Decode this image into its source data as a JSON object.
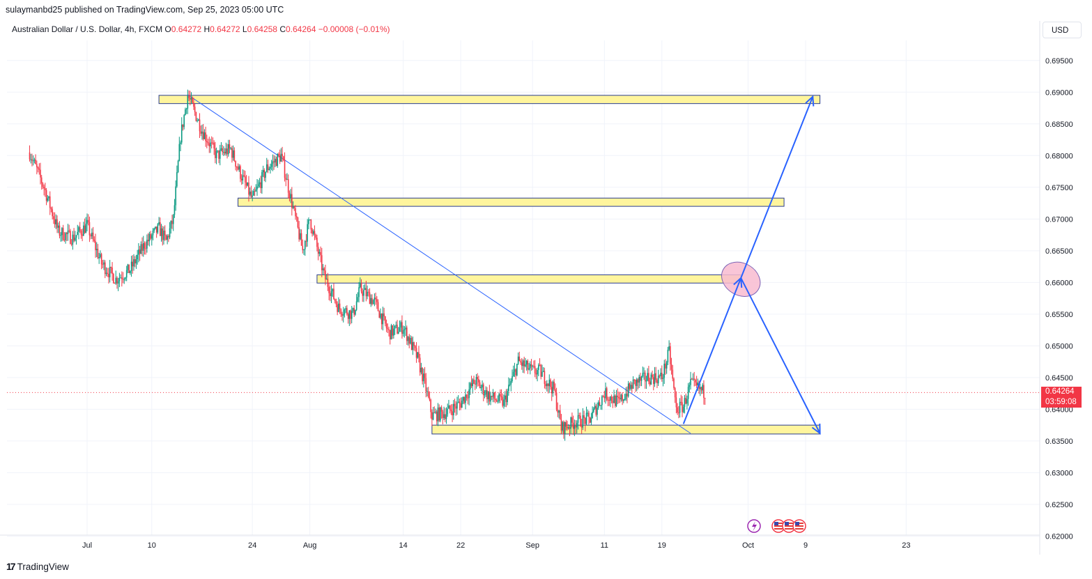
{
  "header": {
    "publisher": "sulaymanbd25 published on TradingView.com, Sep 25, 2023 05:00 UTC",
    "legend_title": "Australian Dollar / U.S. Dollar, 4h, FXCM",
    "o_label": "O",
    "o_value": "0.64272",
    "h_label": "H",
    "h_value": "0.64272",
    "l_label": "L",
    "l_value": "0.64258",
    "c_label": "C",
    "c_value": "0.64264",
    "change": "−0.00008 (−0.01%)",
    "currency_button": "USD"
  },
  "last_price": {
    "price": "0.64264",
    "countdown": "03:59:08"
  },
  "footer": {
    "brand": "TradingView"
  },
  "colors": {
    "up": "#089981",
    "down": "#f23645",
    "zone_fill": "#fff59d",
    "zone_border": "#2a3d8f",
    "arrow": "#2962ff",
    "trendline": "#2962ff",
    "ellipse": "#f8bbd0"
  },
  "chart_data": {
    "type": "candlestick",
    "symbol": "AUDUSD",
    "timeframe": "4h",
    "ylim": [
      0.6195,
      0.6975
    ],
    "y_ticks": [
      "0.69500",
      "0.69000",
      "0.68500",
      "0.68000",
      "0.67500",
      "0.67000",
      "0.66500",
      "0.66000",
      "0.65500",
      "0.65000",
      "0.64500",
      "0.64000",
      "0.63500",
      "0.63000",
      "0.62500",
      "0.62000"
    ],
    "x_ticks": [
      "Jul",
      "10",
      "24",
      "Aug",
      "14",
      "22",
      "Sep",
      "11",
      "19",
      "Oct",
      "9",
      "23"
    ],
    "price_path": [
      [
        "Jun 23",
        0.6805
      ],
      [
        "Jun 25",
        0.675
      ],
      [
        "Jun 27",
        0.668
      ],
      [
        "Jun 29",
        0.667
      ],
      [
        "Jul 1",
        0.669
      ],
      [
        "Jul 3",
        0.663
      ],
      [
        "Jul 5",
        0.6605
      ],
      [
        "Jul 7",
        0.662
      ],
      [
        "Jul 9",
        0.666
      ],
      [
        "Jul 11",
        0.6685
      ],
      [
        "Jul 12",
        0.6665
      ],
      [
        "Jul 13",
        0.67
      ],
      [
        "Jul 14",
        0.683
      ],
      [
        "Jul 15",
        0.6895
      ],
      [
        "Jul 17",
        0.684
      ],
      [
        "Jul 19",
        0.68
      ],
      [
        "Jul 21",
        0.681
      ],
      [
        "Jul 22",
        0.678
      ],
      [
        "Jul 24",
        0.673
      ],
      [
        "Jul 26",
        0.678
      ],
      [
        "Jul 28",
        0.68
      ],
      [
        "Jul 30",
        0.67
      ],
      [
        "Jul 31",
        0.665
      ],
      [
        "Aug 1",
        0.67
      ],
      [
        "Aug 3",
        0.661
      ],
      [
        "Aug 5",
        0.656
      ],
      [
        "Aug 7",
        0.655
      ],
      [
        "Aug 8",
        0.659
      ],
      [
        "Aug 10",
        0.657
      ],
      [
        "Aug 12",
        0.652
      ],
      [
        "Aug 14",
        0.653
      ],
      [
        "Aug 16",
        0.648
      ],
      [
        "Aug 17",
        0.644
      ],
      [
        "Aug 18",
        0.639
      ],
      [
        "Aug 20",
        0.6395
      ],
      [
        "Aug 22",
        0.641
      ],
      [
        "Aug 24",
        0.6445
      ],
      [
        "Aug 26",
        0.642
      ],
      [
        "Aug 28",
        0.641
      ],
      [
        "Aug 30",
        0.6475
      ],
      [
        "Sep 1",
        0.646
      ],
      [
        "Sep 2",
        0.646
      ],
      [
        "Sep 4",
        0.643
      ],
      [
        "Sep 5",
        0.637
      ],
      [
        "Sep 7",
        0.638
      ],
      [
        "Sep 9",
        0.6385
      ],
      [
        "Sep 11",
        0.6425
      ],
      [
        "Sep 13",
        0.641
      ],
      [
        "Sep 15",
        0.644
      ],
      [
        "Sep 17",
        0.645
      ],
      [
        "Sep 19",
        0.645
      ],
      [
        "Sep 20",
        0.649
      ],
      [
        "Sep 21",
        0.64
      ],
      [
        "Sep 22",
        0.6405
      ],
      [
        "Sep 23",
        0.644
      ],
      [
        "Sep 25",
        0.6426
      ]
    ],
    "annotations": {
      "zones": [
        {
          "from": "Jul 11",
          "to": "Oct 11",
          "high": 0.6895,
          "low": 0.6882
        },
        {
          "from": "Jul 22",
          "to": "Oct 6",
          "high": 0.6733,
          "low": 0.672
        },
        {
          "from": "Aug 2",
          "to": "Sep 30",
          "high": 0.6612,
          "low": 0.6599
        },
        {
          "from": "Aug 18",
          "to": "Oct 11",
          "high": 0.6375,
          "low": 0.6361
        }
      ],
      "trendline": {
        "from": [
          "Jul 15",
          0.6896
        ],
        "to": [
          "Sep 23",
          0.6362
        ]
      },
      "projection": [
        [
          "Sep 22",
          0.6377
        ],
        [
          "Sep 30",
          0.6607
        ],
        [
          "Oct 10",
          0.6893
        ]
      ],
      "projection_alt": [
        [
          "Sep 30",
          0.6607
        ],
        [
          "Oct 11",
          0.6362
        ]
      ],
      "highlight_ellipse": {
        "center": [
          "Sep 30",
          0.6605
        ]
      }
    }
  }
}
